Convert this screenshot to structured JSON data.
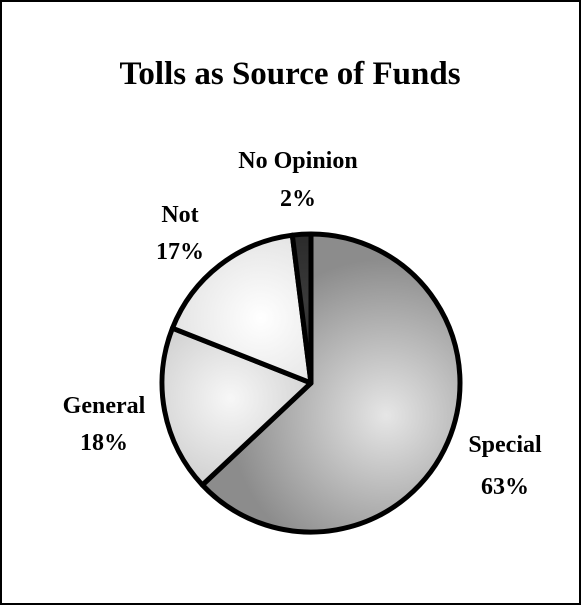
{
  "chart_data": {
    "type": "pie",
    "title": "Tolls as Source of Funds",
    "slices": [
      {
        "label": "Special",
        "value": 63,
        "value_label": "63%",
        "fill_light": "#e6e6e6",
        "fill_dark": "#8c8c8c"
      },
      {
        "label": "General",
        "value": 18,
        "value_label": "18%",
        "fill_light": "#f7f7f7",
        "fill_dark": "#b4b4b4"
      },
      {
        "label": "Not",
        "value": 17,
        "value_label": "17%",
        "fill_light": "#ffffff",
        "fill_dark": "#cfcfcf"
      },
      {
        "label": "No Opinion",
        "value": 2,
        "value_label": "2%",
        "fill_light": "#3a3a3a",
        "fill_dark": "#161616"
      }
    ],
    "start_position": "top",
    "direction": "clockwise",
    "legend": "none",
    "outline_color": "#000000"
  }
}
